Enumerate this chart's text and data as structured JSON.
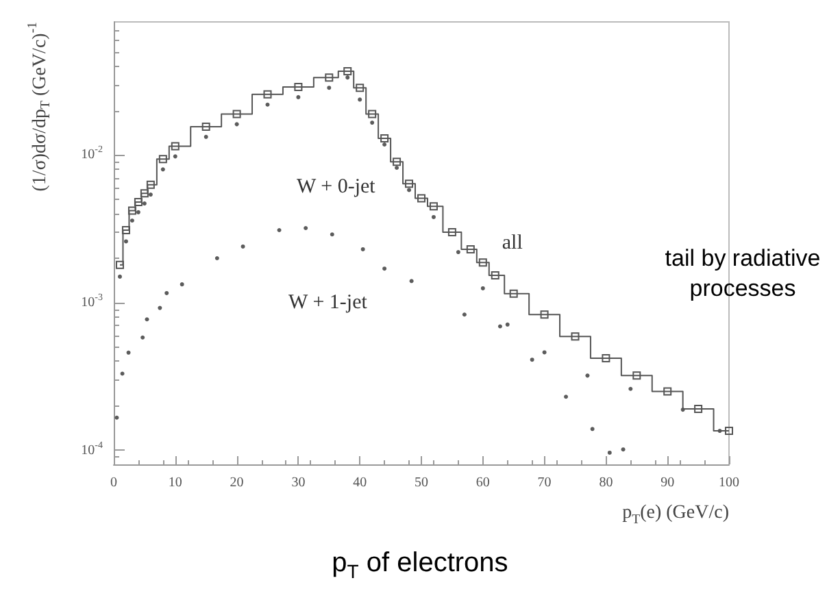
{
  "chart_data": {
    "type": "scatter",
    "xlabel": "p$_{T}$(e) (GeV/c)",
    "ylabel": "(1/σ)dσ/dp$_{T}$ (GeV/c)$^{-1}$",
    "log": "y",
    "grid": false,
    "legend": false,
    "xlim": [
      0,
      100
    ],
    "xticks": [
      0,
      10,
      20,
      30,
      40,
      50,
      60,
      70,
      80,
      90,
      100
    ],
    "ylim": [
      8e-05,
      0.08
    ],
    "yticks": [
      {
        "value": 0.0001,
        "label": "10$^{-4}$"
      },
      {
        "value": 0.001,
        "label": "10$^{-3}$"
      },
      {
        "value": 0.01,
        "label": "10$^{-2}$"
      }
    ],
    "annotations": [
      "tail by radiative processes",
      "p$_{T}$ of electrons"
    ],
    "series": [
      {
        "name": "all",
        "type": "step",
        "marker": "square",
        "color": "#555555",
        "x": [
          1,
          2,
          3,
          4,
          5,
          6,
          8,
          10,
          15,
          20,
          25,
          30,
          35,
          38,
          40,
          42,
          44,
          46,
          48,
          50,
          52,
          55,
          58,
          60,
          62,
          65,
          70,
          75,
          80,
          85,
          90,
          95,
          100
        ],
        "values": [
          0.0018,
          0.0031,
          0.0042,
          0.0048,
          0.0055,
          0.0063,
          0.0094,
          0.0115,
          0.0156,
          0.019,
          0.0258,
          0.029,
          0.0336,
          0.037,
          0.0286,
          0.019,
          0.013,
          0.009,
          0.0064,
          0.0051,
          0.0045,
          0.003,
          0.0023,
          0.00187,
          0.00153,
          0.00115,
          0.00083,
          0.00059,
          0.00042,
          0.00032,
          0.00025,
          0.00019,
          0.000135
        ]
      },
      {
        "name": "W + 0-jet",
        "color": "#333333",
        "marker": "circle",
        "x": [
          1,
          2,
          3,
          4,
          5,
          6,
          8,
          10,
          15,
          20,
          25,
          30,
          35,
          38,
          40,
          42,
          44,
          46,
          48,
          52,
          56,
          60,
          64,
          68,
          73.5,
          77.8,
          80.6,
          82.8
        ],
        "values": [
          0.0015,
          0.0026,
          0.0036,
          0.0041,
          0.0047,
          0.0054,
          0.008,
          0.0098,
          0.0133,
          0.0162,
          0.022,
          0.0247,
          0.0286,
          0.0336,
          0.0238,
          0.0166,
          0.0118,
          0.0082,
          0.0058,
          0.0038,
          0.0022,
          0.00125,
          0.00071,
          0.00041,
          0.00023,
          0.000139,
          9.6e-05,
          0.000101
        ]
      },
      {
        "name": "W + 1-jet",
        "color": "#333333",
        "marker": "circle",
        "x": [
          0.5,
          1.4,
          2.4,
          4.7,
          5.4,
          7.5,
          8.6,
          11.1,
          16.8,
          21,
          26.9,
          31.2,
          35.5,
          40.5,
          44,
          48.4,
          57,
          62.8,
          70,
          77,
          84,
          92.5,
          98.5
        ],
        "values": [
          0.000166,
          0.00033,
          0.000458,
          0.00058,
          0.00077,
          0.00092,
          0.00116,
          0.00133,
          0.002,
          0.0024,
          0.0031,
          0.0032,
          0.0029,
          0.0023,
          0.0017,
          0.0014,
          0.00083,
          0.00069,
          0.00046,
          0.00032,
          0.00026,
          0.000188,
          0.000135
        ]
      }
    ]
  }
}
